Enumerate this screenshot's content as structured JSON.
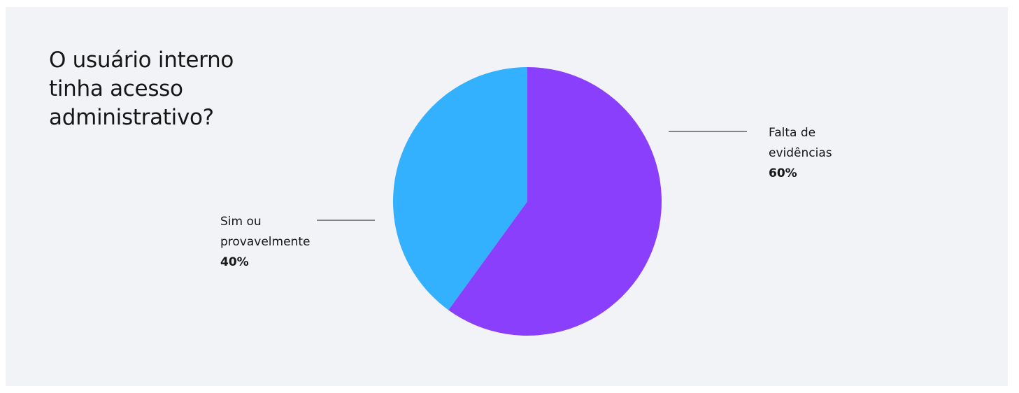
{
  "chart_data": {
    "type": "pie",
    "title": "O usuário interno tinha acesso administrativo?",
    "slices": [
      {
        "label_lines": [
          "Falta de",
          "evidências"
        ],
        "value": 60,
        "value_label": "60%",
        "color": "#8a3ffc"
      },
      {
        "label_lines": [
          "Sim ou",
          "provavelmente"
        ],
        "value": 40,
        "value_label": "40%",
        "color": "#33b1ff"
      }
    ]
  },
  "colors": {
    "background": "#f2f3f7",
    "text": "#161616"
  }
}
